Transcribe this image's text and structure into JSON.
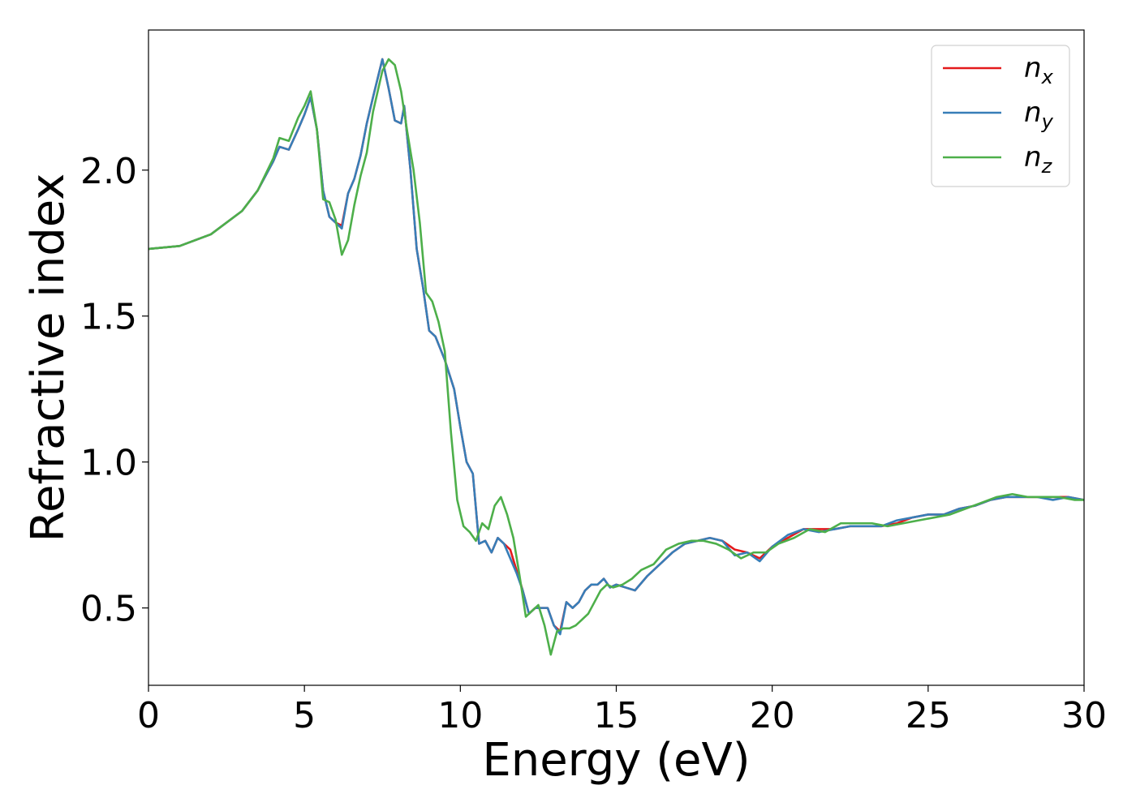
{
  "chart_data": {
    "type": "line",
    "xlabel": "Energy (eV)",
    "ylabel": "Refractive index",
    "xlim": [
      0,
      30
    ],
    "ylim": [
      0.235,
      2.48
    ],
    "xticks": [
      0,
      5,
      10,
      15,
      20,
      25,
      30
    ],
    "xtick_labels": [
      "0",
      "5",
      "10",
      "15",
      "20",
      "25",
      "30"
    ],
    "yticks": [
      0.5,
      1.0,
      1.5,
      2.0
    ],
    "ytick_labels": [
      "0.5",
      "1.0",
      "1.5",
      "2.0"
    ],
    "grid": false,
    "legend_position": "top-right",
    "series": [
      {
        "name": "n",
        "subscript": "x",
        "color": "#e41a1c",
        "x": [
          0,
          1,
          2,
          3,
          3.5,
          4,
          4.2,
          4.5,
          4.8,
          5.0,
          5.2,
          5.4,
          5.6,
          5.8,
          6.0,
          6.2,
          6.4,
          6.6,
          6.8,
          7.0,
          7.2,
          7.5,
          7.7,
          7.9,
          8.1,
          8.2,
          8.4,
          8.6,
          8.8,
          9.0,
          9.2,
          9.5,
          9.8,
          10.0,
          10.2,
          10.4,
          10.6,
          10.8,
          11.0,
          11.2,
          11.4,
          11.6,
          11.8,
          12.0,
          12.2,
          12.4,
          12.6,
          12.8,
          13.0,
          13.2,
          13.4,
          13.6,
          13.8,
          14.0,
          14.2,
          14.4,
          14.6,
          14.8,
          15.0,
          15.3,
          15.6,
          16.0,
          16.4,
          16.8,
          17.2,
          17.6,
          18.0,
          18.4,
          18.8,
          19.2,
          19.6,
          20.0,
          20.5,
          21.0,
          21.5,
          22.0,
          22.5,
          23.0,
          23.5,
          24.0,
          24.5,
          25.0,
          25.5,
          26.0,
          26.5,
          27.0,
          27.5,
          28.0,
          28.5,
          29.0,
          29.5,
          30.0
        ],
        "y": [
          1.73,
          1.74,
          1.78,
          1.86,
          1.93,
          2.03,
          2.08,
          2.07,
          2.14,
          2.19,
          2.25,
          2.14,
          1.93,
          1.84,
          1.82,
          1.81,
          1.92,
          1.97,
          2.05,
          2.16,
          2.25,
          2.38,
          2.28,
          2.17,
          2.16,
          2.22,
          2.0,
          1.73,
          1.6,
          1.45,
          1.43,
          1.35,
          1.25,
          1.12,
          1.0,
          0.96,
          0.72,
          0.73,
          0.69,
          0.74,
          0.72,
          0.7,
          0.63,
          0.56,
          0.48,
          0.5,
          0.5,
          0.5,
          0.44,
          0.42,
          0.52,
          0.5,
          0.52,
          0.56,
          0.58,
          0.58,
          0.6,
          0.57,
          0.58,
          0.57,
          0.56,
          0.61,
          0.65,
          0.69,
          0.72,
          0.73,
          0.74,
          0.73,
          0.7,
          0.69,
          0.67,
          0.71,
          0.74,
          0.77,
          0.77,
          0.77,
          0.78,
          0.78,
          0.78,
          0.79,
          0.81,
          0.82,
          0.82,
          0.84,
          0.85,
          0.87,
          0.88,
          0.88,
          0.88,
          0.88,
          0.88,
          0.87
        ]
      },
      {
        "name": "n",
        "subscript": "y",
        "color": "#377eb8",
        "x": [
          0,
          1,
          2,
          3,
          3.5,
          4,
          4.2,
          4.5,
          4.8,
          5.0,
          5.2,
          5.4,
          5.6,
          5.8,
          6.0,
          6.2,
          6.4,
          6.6,
          6.8,
          7.0,
          7.2,
          7.5,
          7.7,
          7.9,
          8.1,
          8.2,
          8.4,
          8.6,
          8.8,
          9.0,
          9.2,
          9.5,
          9.8,
          10.0,
          10.2,
          10.4,
          10.6,
          10.8,
          11.0,
          11.2,
          11.4,
          11.6,
          11.8,
          12.0,
          12.2,
          12.4,
          12.6,
          12.8,
          13.0,
          13.2,
          13.4,
          13.6,
          13.8,
          14.0,
          14.2,
          14.4,
          14.6,
          14.8,
          15.0,
          15.3,
          15.6,
          16.0,
          16.4,
          16.8,
          17.2,
          17.6,
          18.0,
          18.4,
          18.8,
          19.2,
          19.6,
          20.0,
          20.5,
          21.0,
          21.5,
          22.0,
          22.5,
          23.0,
          23.5,
          24.0,
          24.5,
          25.0,
          25.5,
          26.0,
          26.5,
          27.0,
          27.5,
          28.0,
          28.5,
          29.0,
          29.5,
          30.0
        ],
        "y": [
          1.73,
          1.74,
          1.78,
          1.86,
          1.93,
          2.03,
          2.08,
          2.07,
          2.14,
          2.19,
          2.25,
          2.14,
          1.93,
          1.84,
          1.82,
          1.8,
          1.92,
          1.97,
          2.05,
          2.16,
          2.25,
          2.38,
          2.28,
          2.17,
          2.16,
          2.22,
          2.0,
          1.73,
          1.6,
          1.45,
          1.43,
          1.35,
          1.25,
          1.12,
          1.0,
          0.96,
          0.72,
          0.73,
          0.69,
          0.74,
          0.72,
          0.67,
          0.62,
          0.56,
          0.48,
          0.5,
          0.5,
          0.5,
          0.44,
          0.41,
          0.52,
          0.5,
          0.52,
          0.56,
          0.58,
          0.58,
          0.6,
          0.57,
          0.58,
          0.57,
          0.56,
          0.61,
          0.65,
          0.69,
          0.72,
          0.73,
          0.74,
          0.73,
          0.68,
          0.69,
          0.66,
          0.71,
          0.75,
          0.77,
          0.76,
          0.77,
          0.78,
          0.78,
          0.78,
          0.8,
          0.81,
          0.82,
          0.82,
          0.84,
          0.85,
          0.87,
          0.88,
          0.88,
          0.88,
          0.87,
          0.88,
          0.87
        ]
      },
      {
        "name": "n",
        "subscript": "z",
        "color": "#4daf4a",
        "x": [
          0,
          1,
          2,
          3,
          3.5,
          4,
          4.2,
          4.5,
          4.8,
          5.0,
          5.2,
          5.4,
          5.6,
          5.8,
          6.0,
          6.2,
          6.4,
          6.6,
          6.8,
          7.0,
          7.2,
          7.5,
          7.7,
          7.9,
          8.1,
          8.3,
          8.5,
          8.7,
          8.9,
          9.1,
          9.3,
          9.5,
          9.7,
          9.9,
          10.1,
          10.3,
          10.5,
          10.7,
          10.9,
          11.1,
          11.3,
          11.5,
          11.7,
          11.9,
          12.1,
          12.3,
          12.5,
          12.7,
          12.9,
          13.1,
          13.3,
          13.5,
          13.7,
          13.9,
          14.1,
          14.3,
          14.5,
          14.7,
          14.9,
          15.2,
          15.5,
          15.8,
          16.2,
          16.6,
          17.0,
          17.4,
          17.8,
          18.2,
          18.6,
          19.0,
          19.4,
          19.8,
          20.2,
          20.7,
          21.2,
          21.7,
          22.2,
          22.7,
          23.2,
          23.7,
          24.2,
          24.7,
          25.2,
          25.7,
          26.2,
          26.7,
          27.2,
          27.7,
          28.2,
          28.7,
          29.2,
          29.7,
          30.0
        ],
        "y": [
          1.73,
          1.74,
          1.78,
          1.86,
          1.93,
          2.04,
          2.11,
          2.1,
          2.18,
          2.22,
          2.27,
          2.14,
          1.9,
          1.89,
          1.83,
          1.71,
          1.76,
          1.88,
          1.98,
          2.06,
          2.2,
          2.34,
          2.38,
          2.36,
          2.27,
          2.13,
          2.0,
          1.82,
          1.58,
          1.55,
          1.48,
          1.38,
          1.1,
          0.87,
          0.78,
          0.76,
          0.73,
          0.79,
          0.77,
          0.85,
          0.88,
          0.82,
          0.74,
          0.61,
          0.47,
          0.49,
          0.51,
          0.44,
          0.34,
          0.42,
          0.43,
          0.43,
          0.44,
          0.46,
          0.48,
          0.52,
          0.56,
          0.58,
          0.57,
          0.58,
          0.6,
          0.63,
          0.65,
          0.7,
          0.72,
          0.73,
          0.73,
          0.72,
          0.7,
          0.67,
          0.69,
          0.69,
          0.72,
          0.74,
          0.77,
          0.76,
          0.79,
          0.79,
          0.79,
          0.78,
          0.79,
          0.8,
          0.81,
          0.82,
          0.84,
          0.86,
          0.88,
          0.89,
          0.88,
          0.88,
          0.88,
          0.87,
          0.87
        ]
      }
    ]
  }
}
